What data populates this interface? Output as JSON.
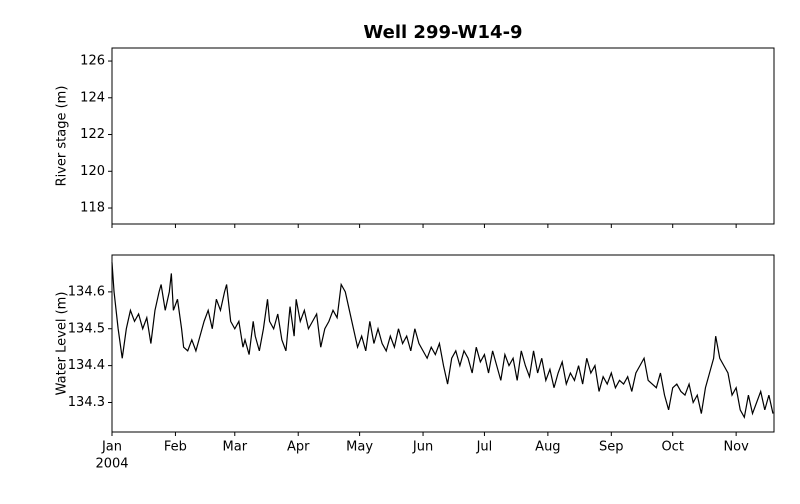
{
  "title": "Well 299-W14-9",
  "chart_data": [
    {
      "type": "line",
      "ylabel": "River stage (m)",
      "ylim": [
        117.13,
        126.71
      ],
      "yticks": [
        118,
        120,
        122,
        124,
        126
      ],
      "xlim": [
        0,
        323.5
      ],
      "x": [],
      "series": []
    },
    {
      "type": "line",
      "ylabel": "Water Level (m)",
      "ylim": [
        134.22,
        134.7
      ],
      "yticks": [
        134.3,
        134.4,
        134.5,
        134.6
      ],
      "xlim": [
        0,
        323.5
      ],
      "xticks": [
        {
          "value": 0,
          "label": "Jan"
        },
        {
          "value": 31,
          "label": "Feb"
        },
        {
          "value": 60,
          "label": "Mar"
        },
        {
          "value": 91,
          "label": "Apr"
        },
        {
          "value": 121,
          "label": "May"
        },
        {
          "value": 152,
          "label": "Jun"
        },
        {
          "value": 182,
          "label": "Jul"
        },
        {
          "value": 213,
          "label": "Aug"
        },
        {
          "value": 244,
          "label": "Sep"
        },
        {
          "value": 274,
          "label": "Oct"
        },
        {
          "value": 305,
          "label": "Nov"
        }
      ],
      "x_year_label": "2004",
      "x": [
        0,
        1,
        3,
        5,
        7,
        9,
        11,
        13,
        15,
        17,
        19,
        21,
        23,
        24,
        26,
        28,
        29,
        30,
        32,
        34,
        35,
        37,
        39,
        41,
        43,
        45,
        47,
        49,
        51,
        53,
        55,
        56,
        58,
        60,
        62,
        64,
        65,
        67,
        69,
        70,
        72,
        74,
        76,
        77,
        79,
        81,
        83,
        85,
        87,
        89,
        90,
        92,
        94,
        96,
        98,
        100,
        102,
        104,
        106,
        108,
        110,
        112,
        114,
        116,
        118,
        120,
        122,
        124,
        126,
        128,
        130,
        132,
        134,
        136,
        138,
        140,
        142,
        144,
        146,
        148,
        150,
        152,
        154,
        156,
        158,
        160,
        162,
        164,
        166,
        168,
        170,
        172,
        174,
        176,
        178,
        180,
        182,
        184,
        186,
        188,
        190,
        192,
        194,
        196,
        198,
        200,
        202,
        204,
        206,
        208,
        210,
        212,
        214,
        216,
        218,
        220,
        222,
        224,
        226,
        228,
        230,
        232,
        234,
        236,
        238,
        240,
        242,
        244,
        246,
        248,
        250,
        252,
        254,
        256,
        258,
        260,
        262,
        264,
        266,
        268,
        270,
        272,
        274,
        276,
        278,
        280,
        282,
        284,
        286,
        288,
        290,
        292,
        294,
        295,
        297,
        299,
        301,
        303,
        305,
        307,
        309,
        311,
        313,
        315,
        317,
        319,
        321,
        323
      ],
      "series": [
        {
          "color": "#000000",
          "values": [
            134.68,
            134.6,
            134.5,
            134.42,
            134.5,
            134.55,
            134.52,
            134.54,
            134.5,
            134.53,
            134.46,
            134.55,
            134.6,
            134.62,
            134.55,
            134.6,
            134.65,
            134.55,
            134.58,
            134.5,
            134.45,
            134.44,
            134.47,
            134.44,
            134.48,
            134.52,
            134.55,
            134.5,
            134.58,
            134.55,
            134.6,
            134.62,
            134.52,
            134.5,
            134.52,
            134.45,
            134.47,
            134.43,
            134.52,
            134.48,
            134.44,
            134.5,
            134.58,
            134.52,
            134.5,
            134.54,
            134.47,
            134.44,
            134.56,
            134.48,
            134.58,
            134.52,
            134.55,
            134.5,
            134.52,
            134.54,
            134.45,
            134.5,
            134.52,
            134.55,
            134.53,
            134.62,
            134.6,
            134.55,
            134.5,
            134.45,
            134.48,
            134.44,
            134.52,
            134.46,
            134.5,
            134.46,
            134.44,
            134.48,
            134.45,
            134.5,
            134.46,
            134.48,
            134.44,
            134.5,
            134.46,
            134.44,
            134.42,
            134.45,
            134.43,
            134.46,
            134.4,
            134.35,
            134.42,
            134.44,
            134.4,
            134.44,
            134.42,
            134.38,
            134.45,
            134.41,
            134.43,
            134.38,
            134.44,
            134.4,
            134.36,
            134.43,
            134.4,
            134.42,
            134.36,
            134.44,
            134.4,
            134.37,
            134.44,
            134.38,
            134.42,
            134.36,
            134.39,
            134.34,
            134.38,
            134.41,
            134.35,
            134.38,
            134.36,
            134.4,
            134.35,
            134.42,
            134.38,
            134.4,
            134.33,
            134.37,
            134.35,
            134.38,
            134.34,
            134.36,
            134.35,
            134.37,
            134.33,
            134.38,
            134.4,
            134.42,
            134.36,
            134.35,
            134.34,
            134.38,
            134.32,
            134.28,
            134.34,
            134.35,
            134.33,
            134.32,
            134.35,
            134.3,
            134.32,
            134.27,
            134.34,
            134.38,
            134.42,
            134.48,
            134.42,
            134.4,
            134.38,
            134.32,
            134.34,
            134.28,
            134.26,
            134.32,
            134.27,
            134.3,
            134.33,
            134.28,
            134.32,
            134.27
          ]
        }
      ]
    }
  ]
}
